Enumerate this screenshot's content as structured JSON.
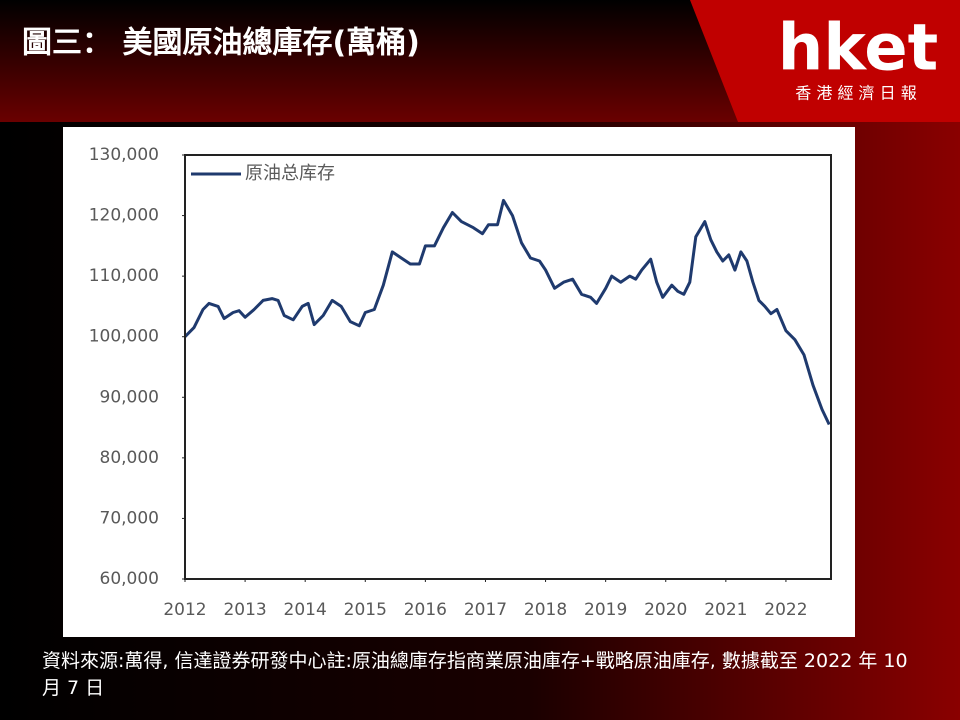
{
  "header": {
    "title": "圖三： 美國原油總庫存(萬桶)",
    "logo": "hket",
    "logo_subtitle": "香 港 經 濟 日 報"
  },
  "chart_data": {
    "type": "line",
    "series": [
      {
        "name": "原油总库存",
        "color": "#1f3a6e",
        "x": [
          2012.0,
          2012.15,
          2012.3,
          2012.4,
          2012.55,
          2012.65,
          2012.8,
          2012.9,
          2013.0,
          2013.15,
          2013.3,
          2013.45,
          2013.55,
          2013.65,
          2013.8,
          2013.95,
          2014.05,
          2014.15,
          2014.3,
          2014.45,
          2014.6,
          2014.75,
          2014.9,
          2015.0,
          2015.15,
          2015.3,
          2015.45,
          2015.6,
          2015.75,
          2015.9,
          2016.0,
          2016.15,
          2016.3,
          2016.45,
          2016.6,
          2016.8,
          2016.95,
          2017.05,
          2017.2,
          2017.3,
          2017.45,
          2017.6,
          2017.75,
          2017.9,
          2018.0,
          2018.15,
          2018.3,
          2018.45,
          2018.6,
          2018.75,
          2018.85,
          2019.0,
          2019.1,
          2019.25,
          2019.4,
          2019.5,
          2019.6,
          2019.75,
          2019.85,
          2019.95,
          2020.1,
          2020.2,
          2020.3,
          2020.4,
          2020.5,
          2020.65,
          2020.75,
          2020.85,
          2020.95,
          2021.05,
          2021.15,
          2021.25,
          2021.35,
          2021.45,
          2021.55,
          2021.65,
          2021.75,
          2021.85,
          2022.0,
          2022.15,
          2022.3,
          2022.45,
          2022.6,
          2022.72
        ],
        "values": [
          100000,
          101500,
          104500,
          105500,
          105000,
          103000,
          104000,
          104300,
          103200,
          104500,
          106000,
          106300,
          106000,
          103500,
          102800,
          105000,
          105500,
          102000,
          103500,
          106000,
          105000,
          102500,
          101800,
          104000,
          104500,
          108500,
          114000,
          113000,
          112000,
          112000,
          115000,
          115000,
          118000,
          120500,
          119000,
          118000,
          117000,
          118500,
          118500,
          122500,
          120000,
          115500,
          113000,
          112500,
          111000,
          108000,
          109000,
          109500,
          107000,
          106500,
          105500,
          108000,
          110000,
          109000,
          110000,
          109500,
          111000,
          112800,
          109000,
          106500,
          108500,
          107500,
          107000,
          109000,
          116500,
          119000,
          116000,
          114000,
          112500,
          113500,
          111000,
          114000,
          112500,
          109000,
          106000,
          105000,
          103800,
          104500,
          101000,
          99500,
          97000,
          92000,
          88000,
          85500
        ]
      }
    ],
    "xlim": [
      2012,
      2022.75
    ],
    "xticks": [
      2012,
      2013,
      2014,
      2015,
      2016,
      2017,
      2018,
      2019,
      2020,
      2021,
      2022
    ],
    "ylim": [
      60000,
      130000
    ],
    "yticks": [
      {
        "value": 60000,
        "label": "60,000"
      },
      {
        "value": 70000,
        "label": "70,000"
      },
      {
        "value": 80000,
        "label": "80,000"
      },
      {
        "value": 90000,
        "label": "90,000"
      },
      {
        "value": 100000,
        "label": "100,000"
      },
      {
        "value": 110000,
        "label": "110,000"
      },
      {
        "value": 120000,
        "label": "120,000"
      },
      {
        "value": 130000,
        "label": "130,000"
      }
    ],
    "grid": false,
    "legend": "top-left"
  },
  "footer": {
    "note": "資料來源:萬得, 信達證券研發中心註:原油總庫存指商業原油庫存+戰略原油庫存, 數據截至 2022 年 10 月 7 日"
  }
}
